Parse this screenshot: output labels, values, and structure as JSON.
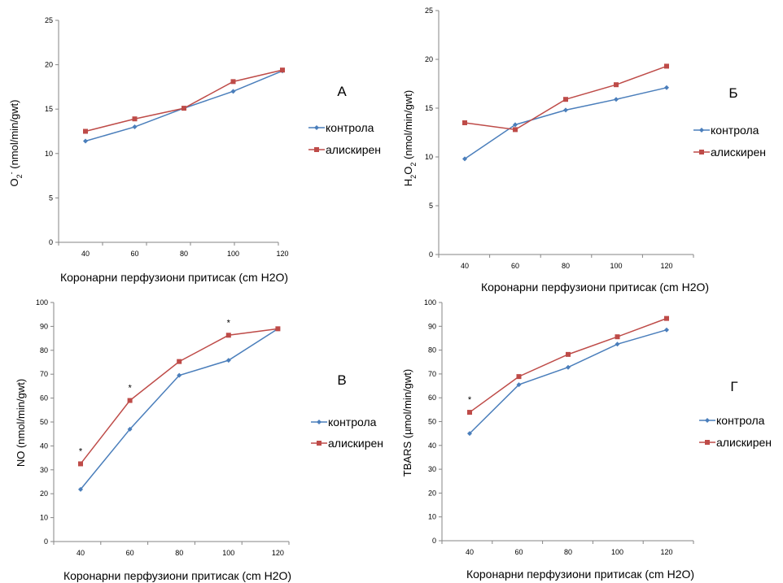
{
  "colors": {
    "control": "#4A7EBB",
    "aliskiren": "#BE4B48",
    "axis": "#868686"
  },
  "chart_data": [
    {
      "type": "line",
      "panel_letter": "А",
      "categories": [
        "40",
        "60",
        "80",
        "100",
        "120"
      ],
      "ylim": [
        0,
        25
      ],
      "yticks": [
        0,
        5,
        10,
        15,
        20,
        25
      ],
      "ylabel_main": "O",
      "ylabel_sub": "2",
      "ylabel_sup": "-",
      "ylabel_rest": " (nmol/min/gwt)",
      "xlabel": "Коронарни перфузиони притисак  (cm H2O)",
      "series": [
        {
          "name": "контрола",
          "values": [
            11.4,
            13.0,
            15.1,
            17.0,
            19.3
          ]
        },
        {
          "name": "алискирен",
          "values": [
            12.5,
            13.9,
            15.1,
            18.1,
            19.4
          ]
        }
      ],
      "significance": []
    },
    {
      "type": "line",
      "panel_letter": "Б",
      "categories": [
        "40",
        "60",
        "80",
        "100",
        "120"
      ],
      "ylim": [
        0,
        25
      ],
      "yticks": [
        0,
        5,
        10,
        15,
        20,
        25
      ],
      "ylabel_main": "H",
      "ylabel_sub": "2",
      "ylabel_mid": "O",
      "ylabel_sub2": "2",
      "ylabel_rest": " (nmol/min/gwt)",
      "xlabel": "Коронарни перфузиони притисак  (cm H2O)",
      "series": [
        {
          "name": "контрола",
          "values": [
            9.8,
            13.3,
            14.8,
            15.9,
            17.1
          ]
        },
        {
          "name": "алискирен",
          "values": [
            13.5,
            12.8,
            15.9,
            17.4,
            19.3
          ]
        }
      ],
      "significance": []
    },
    {
      "type": "line",
      "panel_letter": "В",
      "categories": [
        "40",
        "60",
        "80",
        "100",
        "120"
      ],
      "ylim": [
        0,
        100
      ],
      "yticks": [
        0,
        10,
        20,
        30,
        40,
        50,
        60,
        70,
        80,
        90,
        100
      ],
      "ylabel_main": "NO  (nmol/min/gwt)",
      "xlabel": "Коронарни перфузиони притисак  (cm H2O)",
      "series": [
        {
          "name": "контрола",
          "values": [
            21.8,
            47.0,
            69.5,
            75.8,
            89.0
          ]
        },
        {
          "name": "алискирен",
          "values": [
            32.5,
            59.0,
            75.3,
            86.3,
            89.0
          ]
        }
      ],
      "significance": [
        0,
        1,
        3
      ],
      "significance_symbol": "*"
    },
    {
      "type": "line",
      "panel_letter": "Г",
      "categories": [
        "40",
        "60",
        "80",
        "100",
        "120"
      ],
      "ylim": [
        0,
        100
      ],
      "yticks": [
        0,
        10,
        20,
        30,
        40,
        50,
        60,
        70,
        80,
        90,
        100
      ],
      "ylabel_main": "TBARS  (µmol/min/gwt)",
      "xlabel": "Коронарни перфузиони притисак  (cm H2O)",
      "series": [
        {
          "name": "контрола",
          "values": [
            45.0,
            65.5,
            72.8,
            82.5,
            88.5
          ]
        },
        {
          "name": "алискирен",
          "values": [
            53.9,
            68.9,
            78.2,
            85.6,
            93.3
          ]
        }
      ],
      "significance": [
        0
      ],
      "significance_symbol": "*"
    }
  ]
}
